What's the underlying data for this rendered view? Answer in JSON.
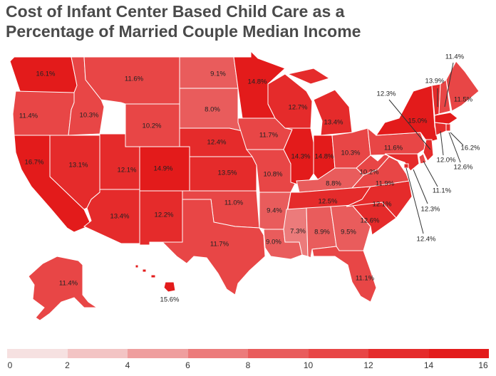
{
  "title_line1": "Cost of Infant Center Based Child Care as a",
  "title_line2": "Percentage of Married Couple Median Income",
  "colors": {
    "scale": [
      "#f6e1e1",
      "#f3c4c4",
      "#ef9e9e",
      "#ec7b7b",
      "#e95c5c",
      "#e84646",
      "#e52b2b",
      "#e31b1b"
    ],
    "border": "#ffffff",
    "callout_line": "#333333"
  },
  "legend": {
    "ticks": [
      "0",
      "2",
      "4",
      "6",
      "8",
      "10",
      "12",
      "14",
      "16"
    ]
  },
  "states": [
    {
      "state": "WA",
      "label": "16.1%",
      "value": 16.1
    },
    {
      "state": "OR",
      "label": "11.4%",
      "value": 11.4
    },
    {
      "state": "CA",
      "label": "16.7%",
      "value": 16.7
    },
    {
      "state": "ID",
      "label": "10.3%",
      "value": 10.3
    },
    {
      "state": "NV",
      "label": "13.1%",
      "value": 13.1
    },
    {
      "state": "MT",
      "label": "11.6%",
      "value": 11.6
    },
    {
      "state": "WY",
      "label": "10.2%",
      "value": 10.2
    },
    {
      "state": "UT",
      "label": "12.1%",
      "value": 12.1
    },
    {
      "state": "AZ",
      "label": "13.4%",
      "value": 13.4
    },
    {
      "state": "CO",
      "label": "14.9%",
      "value": 14.9
    },
    {
      "state": "NM",
      "label": "12.2%",
      "value": 12.2
    },
    {
      "state": "ND",
      "label": "9.1%",
      "value": 9.1
    },
    {
      "state": "SD",
      "label": "8.0%",
      "value": 8.0
    },
    {
      "state": "NE",
      "label": "12.4%",
      "value": 12.4
    },
    {
      "state": "KS",
      "label": "13.5%",
      "value": 13.5
    },
    {
      "state": "OK",
      "label": "11.0%",
      "value": 11.0
    },
    {
      "state": "TX",
      "label": "11.7%",
      "value": 11.7
    },
    {
      "state": "MN",
      "label": "14.8%",
      "value": 14.8
    },
    {
      "state": "IA",
      "label": "11.7%",
      "value": 11.7
    },
    {
      "state": "MO",
      "label": "10.8%",
      "value": 10.8
    },
    {
      "state": "AR",
      "label": "9.4%",
      "value": 9.4
    },
    {
      "state": "LA",
      "label": "9.0%",
      "value": 9.0
    },
    {
      "state": "WI",
      "label": "12.7%",
      "value": 12.7
    },
    {
      "state": "IL",
      "label": "14.3%",
      "value": 14.3
    },
    {
      "state": "MI",
      "label": "13.4%",
      "value": 13.4
    },
    {
      "state": "IN",
      "label": "14.8%",
      "value": 14.8
    },
    {
      "state": "OH",
      "label": "10.3%",
      "value": 10.3
    },
    {
      "state": "KY",
      "label": "8.8%",
      "value": 8.8
    },
    {
      "state": "TN",
      "label": "12.5%",
      "value": 12.5
    },
    {
      "state": "MS",
      "label": "7.3%",
      "value": 7.3
    },
    {
      "state": "AL",
      "label": "8.9%",
      "value": 8.9
    },
    {
      "state": "GA",
      "label": "9.5%",
      "value": 9.5
    },
    {
      "state": "FL",
      "label": "11.1%",
      "value": 11.1
    },
    {
      "state": "SC",
      "label": "12.6%",
      "value": 12.6
    },
    {
      "state": "NC",
      "label": "12.1%",
      "value": 12.1
    },
    {
      "state": "VA",
      "label": "11.9%",
      "value": 11.9
    },
    {
      "state": "WV",
      "label": "10.2%",
      "value": 10.2
    },
    {
      "state": "PA",
      "label": "11.6%",
      "value": 11.6
    },
    {
      "state": "NY",
      "label": "15.0%",
      "value": 15.0
    },
    {
      "state": "VT",
      "label": "13.9%",
      "value": 13.9
    },
    {
      "state": "NH",
      "label": "11.4%",
      "value": 11.4
    },
    {
      "state": "ME",
      "label": "11.5%",
      "value": 11.5
    },
    {
      "state": "MA",
      "label": "16.2%",
      "value": 16.2
    },
    {
      "state": "RI",
      "label": "12.6%",
      "value": 12.6
    },
    {
      "state": "CT",
      "label": "12.0%",
      "value": 12.0
    },
    {
      "state": "NJ",
      "label": "12.3%",
      "value": 12.3
    },
    {
      "state": "DE",
      "label": "11.1%",
      "value": 11.1
    },
    {
      "state": "MD",
      "label": "12.3%",
      "value": 12.3
    },
    {
      "state": "DC",
      "label": "12.4%",
      "value": 12.4
    },
    {
      "state": "AK",
      "label": "11.4%",
      "value": 11.4
    },
    {
      "state": "HI",
      "label": "15.6%",
      "value": 15.6
    }
  ]
}
